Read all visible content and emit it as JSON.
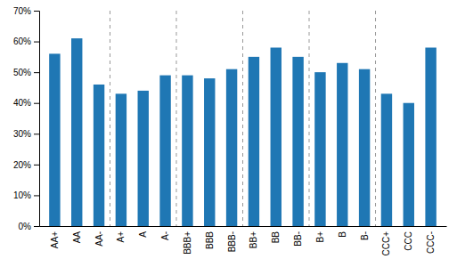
{
  "chart_data": {
    "type": "bar",
    "categories": [
      "AA+",
      "AA",
      "AA-",
      "A+",
      "A",
      "A-",
      "BBB+",
      "BBB",
      "BBB-",
      "BB+",
      "BB",
      "BB-",
      "B+",
      "B",
      "B-",
      "CCC+",
      "CCC",
      "CCC-"
    ],
    "values": [
      0.56,
      0.61,
      0.46,
      0.43,
      0.44,
      0.49,
      0.49,
      0.48,
      0.51,
      0.55,
      0.58,
      0.55,
      0.5,
      0.53,
      0.51,
      0.43,
      0.4,
      0.58
    ],
    "ylim": [
      0,
      0.7
    ],
    "yticks": [
      {
        "value": 0.0,
        "label": "0%"
      },
      {
        "value": 0.1,
        "label": "10%"
      },
      {
        "value": 0.2,
        "label": "20%"
      },
      {
        "value": 0.3,
        "label": "30%"
      },
      {
        "value": 0.4,
        "label": "40%"
      },
      {
        "value": 0.5,
        "label": "50%"
      },
      {
        "value": 0.6,
        "label": "60%"
      },
      {
        "value": 0.7,
        "label": "70%"
      }
    ],
    "grid": false
  }
}
